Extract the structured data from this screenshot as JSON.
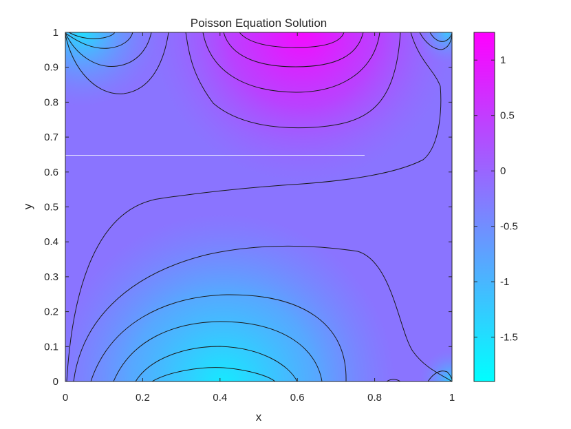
{
  "chart_data": {
    "type": "heatmap",
    "title": "Poisson Equation Solution",
    "xlabel": "x",
    "ylabel": "y",
    "xlim": [
      0,
      1
    ],
    "ylim": [
      0,
      1
    ],
    "xticks": [
      0,
      0.2,
      0.4,
      0.6,
      0.8,
      1
    ],
    "xtick_labels": [
      "0",
      "0.2",
      "0.4",
      "0.6",
      "0.8",
      "1"
    ],
    "yticks": [
      0,
      0.1,
      0.2,
      0.3,
      0.4,
      0.5,
      0.6,
      0.7,
      0.8,
      0.9,
      1
    ],
    "ytick_labels": [
      "0",
      "0.1",
      "0.2",
      "0.3",
      "0.4",
      "0.5",
      "0.6",
      "0.7",
      "0.8",
      "0.9",
      "1"
    ],
    "colormap": "cool",
    "colormap_colors": [
      "#00ffff",
      "#ff00ff"
    ],
    "color_limits": [
      -1.9,
      1.25
    ],
    "colorbar_ticks": [
      1,
      0.5,
      0,
      -0.5,
      -1,
      -1.5
    ],
    "colorbar_tick_labels": [
      "1",
      "0.5",
      "0",
      "-0.5",
      "-1",
      "-1.5"
    ],
    "grid": false,
    "contour_color": "#1a1a1a",
    "field_features": [
      {
        "x": 0.42,
        "y": 0.0,
        "value": -1.9
      },
      {
        "x": 0.62,
        "y": 1.0,
        "value": 1.25
      },
      {
        "x": 0.05,
        "y": 1.0,
        "value": -1.6
      },
      {
        "x": 0.98,
        "y": 1.0,
        "value": -1.0
      },
      {
        "x": 0.98,
        "y": 0.0,
        "value": -1.3
      }
    ]
  }
}
